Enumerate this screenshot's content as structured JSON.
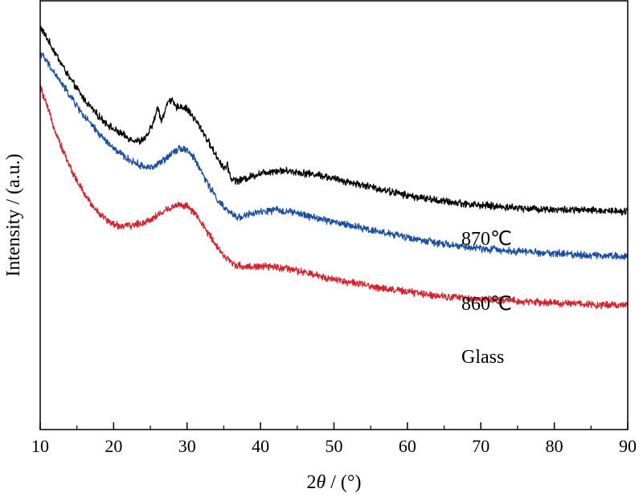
{
  "chart_data": {
    "type": "line",
    "title": "",
    "xlabel_prefix": "2",
    "xlabel_symbol": "θ",
    "xlabel_suffix": " / (°)",
    "ylabel": "Intensity / (a.u.)",
    "xlim": [
      10,
      90
    ],
    "ylim": [
      0,
      1
    ],
    "y_ticklabels_shown": false,
    "x_ticks": [
      10,
      20,
      30,
      40,
      50,
      60,
      70,
      80,
      90
    ],
    "x_tick_labels": [
      "10",
      "20",
      "30",
      "40",
      "50",
      "60",
      "70",
      "80",
      "90"
    ],
    "grid": false,
    "legend": "inline labels at right",
    "series": [
      {
        "name": "870℃",
        "color": "#000000",
        "x": [
          10,
          12,
          14,
          16,
          18,
          20,
          22,
          23.5,
          24.5,
          25.5,
          26,
          26.5,
          27,
          27.5,
          28,
          28.5,
          29,
          30,
          31,
          32,
          33,
          34,
          35,
          35.5,
          36,
          37,
          38,
          40,
          42,
          44,
          46,
          48,
          50,
          55,
          60,
          65,
          70,
          75,
          80,
          85,
          90
        ],
        "y": [
          0.94,
          0.88,
          0.82,
          0.77,
          0.73,
          0.7,
          0.68,
          0.672,
          0.682,
          0.72,
          0.752,
          0.722,
          0.742,
          0.771,
          0.765,
          0.75,
          0.755,
          0.748,
          0.725,
          0.7,
          0.668,
          0.638,
          0.61,
          0.615,
          0.585,
          0.58,
          0.586,
          0.598,
          0.604,
          0.603,
          0.598,
          0.594,
          0.585,
          0.566,
          0.546,
          0.532,
          0.523,
          0.517,
          0.513,
          0.511,
          0.51
        ]
      },
      {
        "name": "860℃",
        "color": "#1a4fa0",
        "x": [
          10,
          12,
          14,
          16,
          18,
          20,
          22,
          24,
          25.5,
          27,
          28,
          29,
          30,
          31,
          32,
          33,
          34,
          35,
          36,
          37,
          38,
          40,
          42,
          44,
          46,
          48,
          50,
          55,
          60,
          65,
          70,
          75,
          80,
          85,
          90
        ],
        "y": [
          0.88,
          0.83,
          0.78,
          0.73,
          0.69,
          0.655,
          0.63,
          0.613,
          0.613,
          0.63,
          0.648,
          0.657,
          0.652,
          0.632,
          0.6,
          0.568,
          0.54,
          0.518,
          0.503,
          0.495,
          0.5,
          0.507,
          0.512,
          0.508,
          0.5,
          0.492,
          0.484,
          0.466,
          0.448,
          0.432,
          0.422,
          0.416,
          0.411,
          0.407,
          0.404
        ]
      },
      {
        "name": "Glass",
        "color": "#d6202a",
        "x": [
          10,
          11,
          12,
          13,
          14,
          15,
          16,
          17,
          18,
          19,
          20,
          21,
          22,
          23,
          24,
          25,
          26,
          27,
          28,
          29,
          30,
          31,
          32,
          33,
          34,
          35,
          36,
          37,
          38,
          40,
          42,
          44,
          46,
          48,
          50,
          55,
          60,
          65,
          70,
          75,
          80,
          85,
          90
        ],
        "y": [
          0.8,
          0.75,
          0.7,
          0.655,
          0.615,
          0.58,
          0.55,
          0.525,
          0.505,
          0.49,
          0.478,
          0.475,
          0.475,
          0.478,
          0.482,
          0.49,
          0.5,
          0.51,
          0.52,
          0.525,
          0.52,
          0.505,
          0.48,
          0.455,
          0.43,
          0.405,
          0.39,
          0.382,
          0.38,
          0.38,
          0.379,
          0.374,
          0.366,
          0.358,
          0.351,
          0.334,
          0.321,
          0.311,
          0.304,
          0.299,
          0.295,
          0.292,
          0.29
        ]
      }
    ]
  }
}
